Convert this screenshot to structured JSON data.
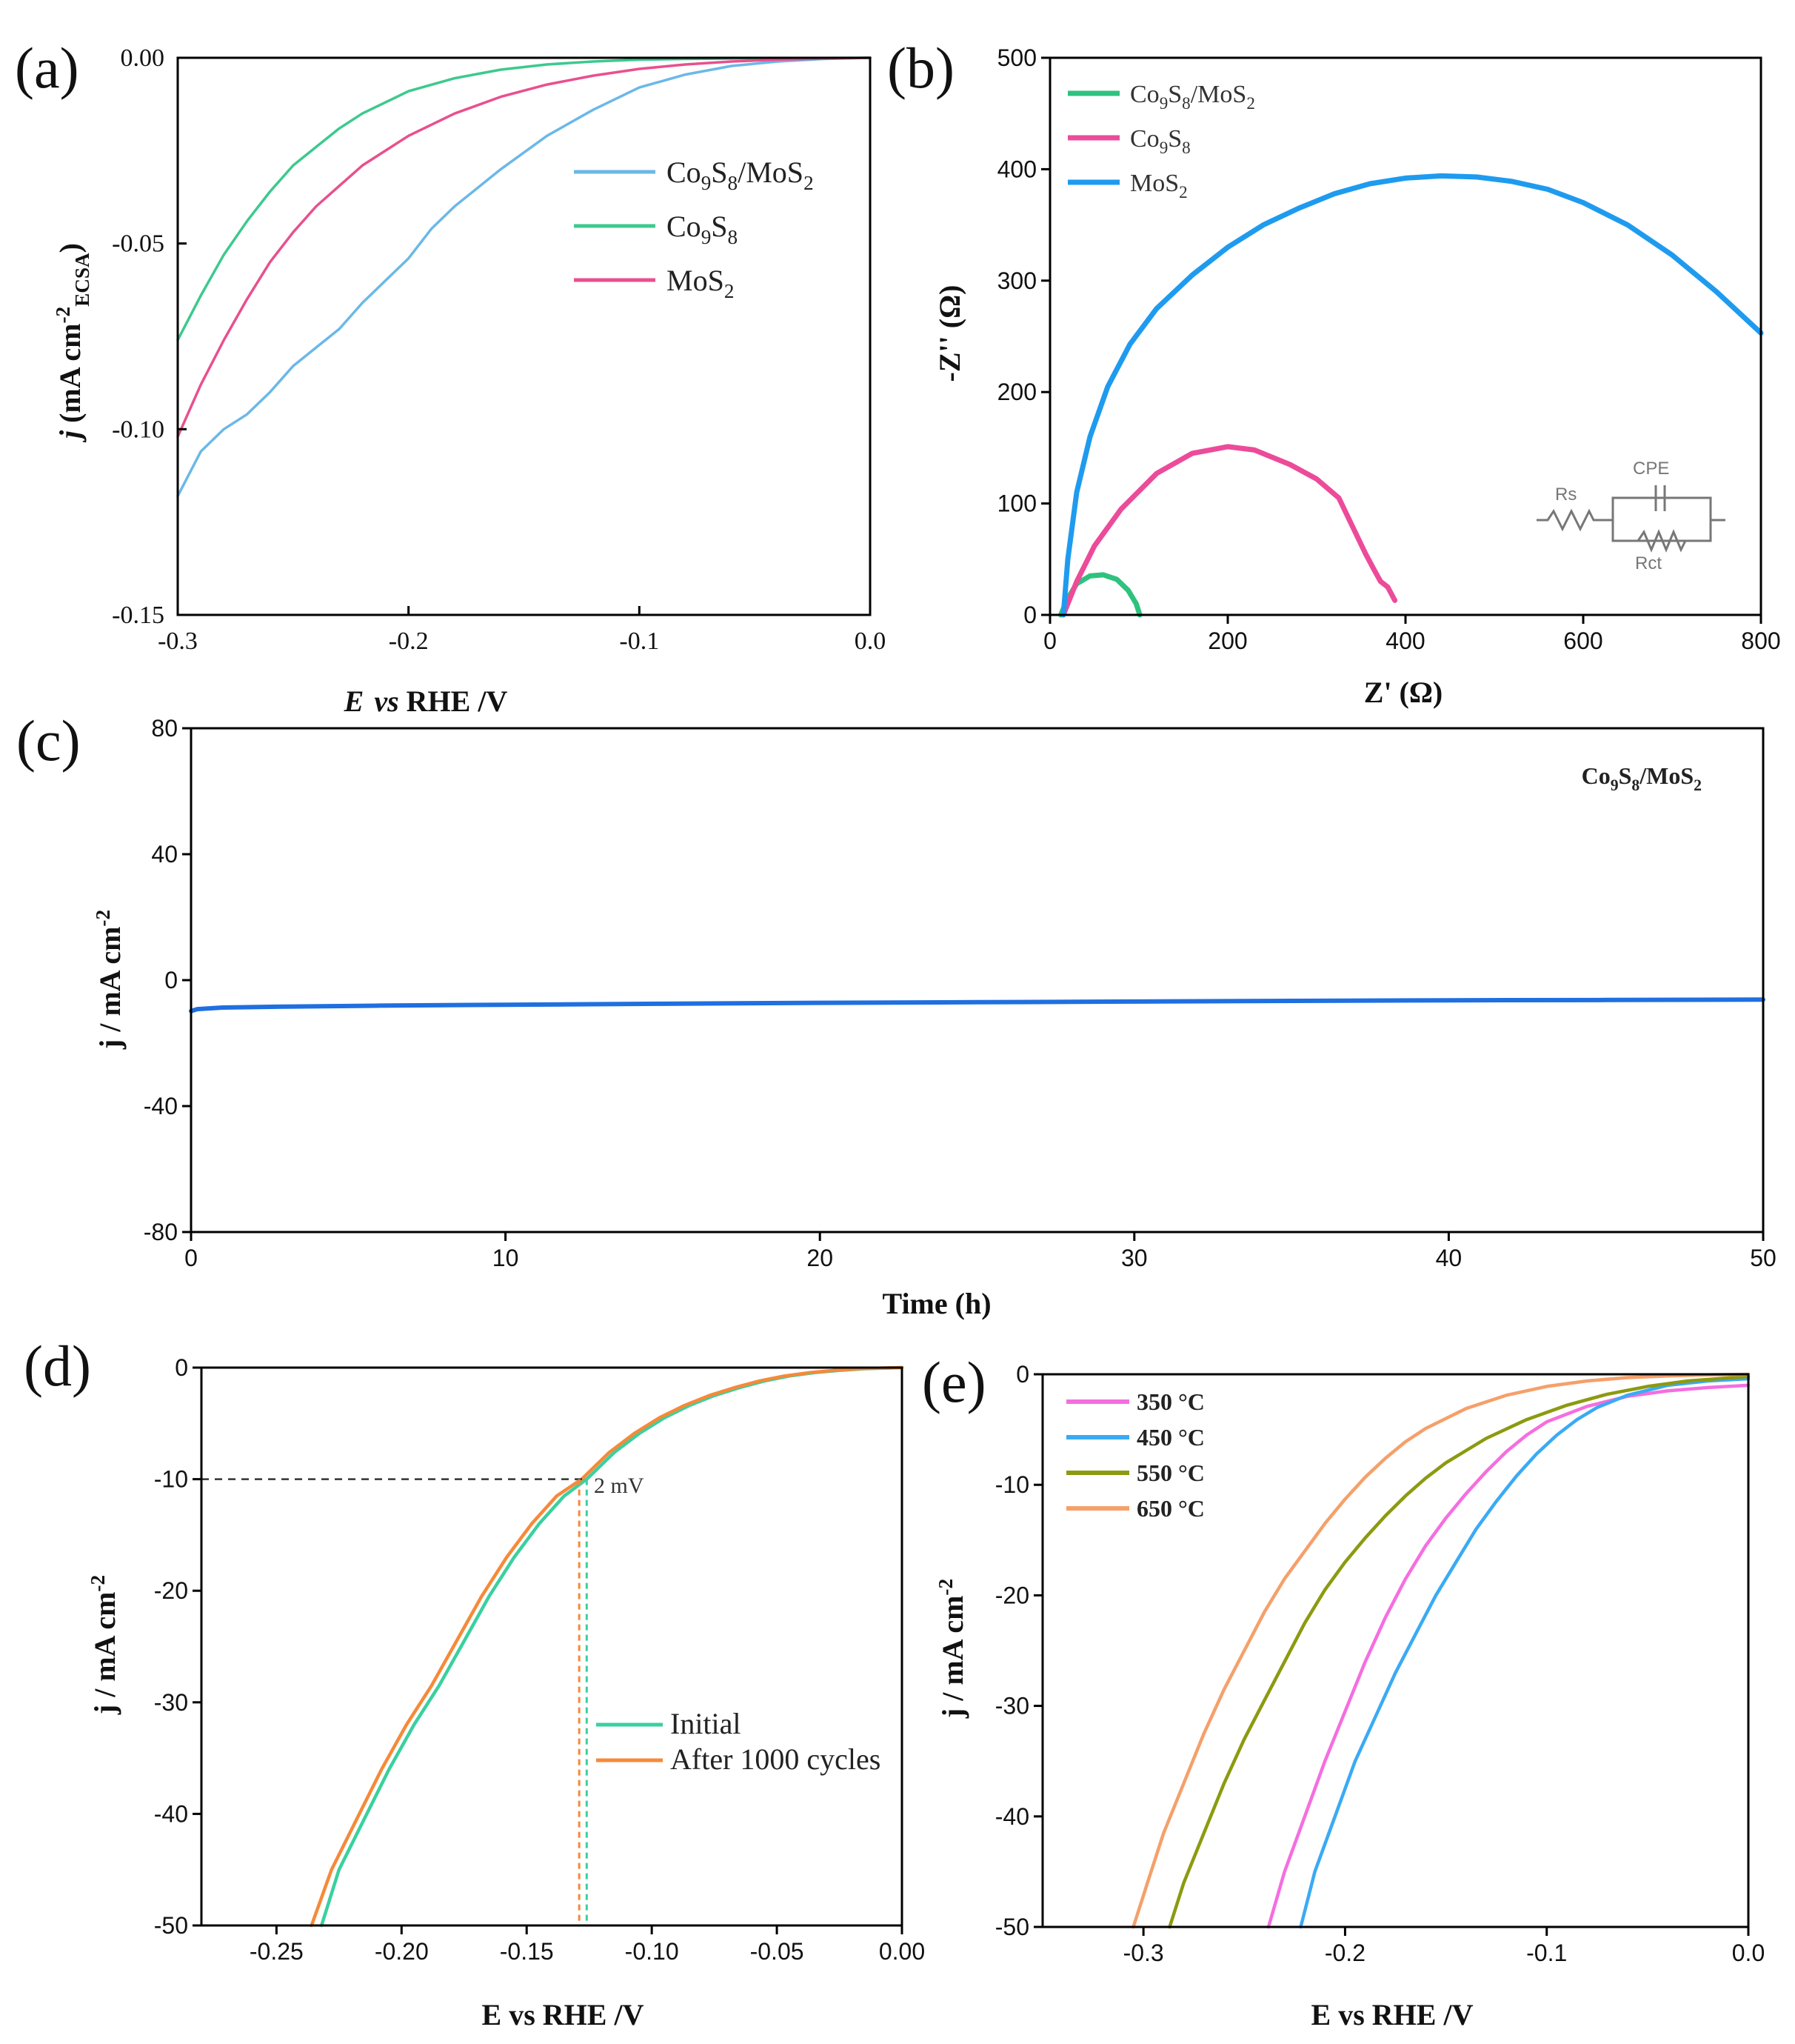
{
  "chart_data": [
    {
      "panel": "(a)",
      "type": "line",
      "xlabel": "E  vs RHE /V",
      "ylabel": "j (mA cm⁻² ECSA)",
      "xlim": [
        -0.3,
        0.0
      ],
      "ylim": [
        -0.15,
        0.0
      ],
      "x_ticks": [
        "-0.3",
        "-0.2",
        "-0.1",
        "0.0"
      ],
      "y_ticks": [
        "0.00",
        "-0.05",
        "-0.10",
        "-0.15"
      ],
      "legend": [
        "Co9S8/MoS2",
        "Co9S8",
        "MoS2"
      ],
      "legend_position": "upper-right",
      "series": [
        {
          "name": "Co9S8/MoS2",
          "color": "#6bb8e8",
          "x": [
            -0.3,
            -0.29,
            -0.28,
            -0.27,
            -0.26,
            -0.25,
            -0.24,
            -0.23,
            -0.22,
            -0.21,
            -0.2,
            -0.19,
            -0.18,
            -0.16,
            -0.14,
            -0.12,
            -0.1,
            -0.08,
            -0.06,
            -0.04,
            -0.02,
            0.0
          ],
          "y": [
            -0.118,
            -0.106,
            -0.1,
            -0.096,
            -0.09,
            -0.083,
            -0.078,
            -0.073,
            -0.066,
            -0.06,
            -0.054,
            -0.046,
            -0.04,
            -0.03,
            -0.021,
            -0.014,
            -0.008,
            -0.0045,
            -0.0022,
            -0.001,
            -0.0003,
            0.0
          ]
        },
        {
          "name": "Co9S8",
          "color": "#3dc98e",
          "x": [
            -0.3,
            -0.29,
            -0.28,
            -0.27,
            -0.26,
            -0.25,
            -0.24,
            -0.23,
            -0.22,
            -0.2,
            -0.18,
            -0.16,
            -0.14,
            -0.12,
            -0.1,
            -0.08,
            -0.06,
            -0.04,
            -0.02,
            0.0
          ],
          "y": [
            -0.076,
            -0.064,
            -0.053,
            -0.044,
            -0.036,
            -0.029,
            -0.024,
            -0.019,
            -0.015,
            -0.009,
            -0.0055,
            -0.0032,
            -0.0018,
            -0.001,
            -0.0005,
            -0.0003,
            -0.0002,
            -0.0001,
            -5e-05,
            0.0
          ]
        },
        {
          "name": "MoS2",
          "color": "#e8508e",
          "x": [
            -0.3,
            -0.29,
            -0.28,
            -0.27,
            -0.26,
            -0.25,
            -0.24,
            -0.22,
            -0.2,
            -0.18,
            -0.16,
            -0.14,
            -0.12,
            -0.1,
            -0.08,
            -0.06,
            -0.04,
            -0.02,
            0.0
          ],
          "y": [
            -0.102,
            -0.088,
            -0.076,
            -0.065,
            -0.055,
            -0.047,
            -0.04,
            -0.029,
            -0.021,
            -0.015,
            -0.0105,
            -0.0072,
            -0.0048,
            -0.003,
            -0.0018,
            -0.001,
            -0.0005,
            -0.0002,
            0.0
          ]
        }
      ]
    },
    {
      "panel": "(b)",
      "type": "line",
      "xlabel": "Z' (Ω)",
      "ylabel": "-Z'' (Ω)",
      "xlim": [
        0,
        800
      ],
      "ylim": [
        0,
        500
      ],
      "x_ticks": [
        "0",
        "200",
        "400",
        "600",
        "800"
      ],
      "y_ticks": [
        "0",
        "100",
        "200",
        "300",
        "400",
        "500"
      ],
      "legend": [
        "Co9S8/MoS2",
        "Co9S8",
        "MoS2"
      ],
      "legend_position": "upper-left",
      "inset_labels": [
        "Rs",
        "CPE",
        "Rct"
      ],
      "series": [
        {
          "name": "Co9S8/MoS2",
          "color": "#2ec27e",
          "x": [
            12,
            20,
            30,
            45,
            60,
            75,
            88,
            97,
            101
          ],
          "y": [
            0,
            15,
            28,
            35,
            36,
            32,
            22,
            10,
            0
          ]
        },
        {
          "name": "Co9S8",
          "color": "#ec4b9a",
          "x": [
            15,
            30,
            50,
            80,
            120,
            160,
            200,
            230,
            270,
            300,
            325,
            340,
            355,
            365,
            372,
            380,
            388
          ],
          "y": [
            0,
            30,
            62,
            95,
            127,
            145,
            151,
            148,
            135,
            122,
            105,
            80,
            55,
            40,
            30,
            25,
            13
          ]
        },
        {
          "name": "MoS2",
          "color": "#1e9bef",
          "x": [
            15,
            20,
            30,
            45,
            65,
            90,
            120,
            160,
            200,
            240,
            280,
            320,
            360,
            400,
            440,
            480,
            520,
            560,
            600,
            650,
            700,
            750,
            800
          ],
          "y": [
            0,
            50,
            110,
            160,
            205,
            243,
            275,
            305,
            330,
            350,
            365,
            378,
            387,
            392,
            394,
            393,
            389,
            382,
            370,
            350,
            323,
            290,
            253
          ]
        }
      ]
    },
    {
      "panel": "(c)",
      "type": "line",
      "title": "Co9S8/MoS2",
      "xlabel": "Time (h)",
      "ylabel": "j / mA cm⁻²",
      "xlim": [
        0,
        50
      ],
      "ylim": [
        -80,
        80
      ],
      "x_ticks": [
        "0",
        "10",
        "20",
        "30",
        "40",
        "50"
      ],
      "y_ticks": [
        "80",
        "40",
        "0",
        "-40",
        "-80"
      ],
      "series": [
        {
          "name": "Co9S8/MoS2",
          "color": "#1f6fe0",
          "x": [
            0,
            0.2,
            1,
            3,
            6,
            10,
            15,
            20,
            25,
            30,
            35,
            40,
            45,
            50
          ],
          "y": [
            -9.8,
            -9.2,
            -8.7,
            -8.4,
            -8.1,
            -7.8,
            -7.5,
            -7.2,
            -7.0,
            -6.8,
            -6.6,
            -6.4,
            -6.3,
            -6.2
          ]
        }
      ]
    },
    {
      "panel": "(d)",
      "type": "line",
      "xlabel": "E vs RHE /V",
      "ylabel": "j / mA cm⁻²",
      "xlim": [
        -0.28,
        0.0
      ],
      "ylim": [
        -50,
        0
      ],
      "x_ticks": [
        "-0.25",
        "-0.20",
        "-0.15",
        "-0.10",
        "-0.05",
        "0.00"
      ],
      "y_ticks": [
        "0",
        "-10",
        "-20",
        "-30",
        "-40",
        "-50"
      ],
      "legend": [
        "Initial",
        "After 1000 cycles"
      ],
      "legend_position": "lower-right",
      "annotation": "2 mV",
      "series": [
        {
          "name": "Initial",
          "color": "#3ad0a0",
          "x": [
            -0.232,
            -0.225,
            -0.215,
            -0.205,
            -0.195,
            -0.185,
            -0.175,
            -0.165,
            -0.155,
            -0.145,
            -0.135,
            -0.126,
            -0.115,
            -0.105,
            -0.095,
            -0.085,
            -0.075,
            -0.065,
            -0.055,
            -0.045,
            -0.035,
            -0.025,
            -0.015,
            -0.005,
            0.0
          ],
          "y": [
            -50,
            -45,
            -40.5,
            -36,
            -32,
            -28.5,
            -24.5,
            -20.5,
            -17,
            -14,
            -11.5,
            -10,
            -7.6,
            -5.9,
            -4.5,
            -3.4,
            -2.5,
            -1.8,
            -1.2,
            -0.75,
            -0.45,
            -0.25,
            -0.1,
            -0.03,
            0
          ]
        },
        {
          "name": "After 1000 cycles",
          "color": "#f58a3a",
          "x": [
            -0.236,
            -0.228,
            -0.218,
            -0.208,
            -0.198,
            -0.188,
            -0.178,
            -0.168,
            -0.158,
            -0.148,
            -0.138,
            -0.128,
            -0.117,
            -0.107,
            -0.097,
            -0.087,
            -0.077,
            -0.067,
            -0.057,
            -0.047,
            -0.037,
            -0.027,
            -0.017,
            -0.007,
            0.0
          ],
          "y": [
            -50,
            -45,
            -40.5,
            -36,
            -32,
            -28.5,
            -24.5,
            -20.5,
            -17,
            -14,
            -11.5,
            -10,
            -7.6,
            -5.9,
            -4.5,
            -3.4,
            -2.5,
            -1.8,
            -1.2,
            -0.75,
            -0.45,
            -0.25,
            -0.1,
            -0.03,
            0
          ]
        }
      ]
    },
    {
      "panel": "(e)",
      "type": "line",
      "xlabel": "E vs RHE /V",
      "ylabel": "j / mA cm⁻²",
      "xlim": [
        -0.35,
        0.0
      ],
      "ylim": [
        -50,
        0
      ],
      "x_ticks": [
        "-0.3",
        "-0.2",
        "-0.1",
        "0.0"
      ],
      "y_ticks": [
        "0",
        "-10",
        "-20",
        "-30",
        "-40",
        "-50"
      ],
      "legend": [
        "350 °C",
        "450 °C",
        "550 °C",
        "650 °C"
      ],
      "legend_position": "upper-left",
      "series": [
        {
          "name": "350 °C",
          "color": "#f56ee0",
          "x": [
            -0.238,
            -0.23,
            -0.22,
            -0.21,
            -0.2,
            -0.19,
            -0.18,
            -0.17,
            -0.16,
            -0.15,
            -0.14,
            -0.13,
            -0.12,
            -0.11,
            -0.1,
            -0.08,
            -0.06,
            -0.04,
            -0.02,
            0.0
          ],
          "y": [
            -50,
            -45,
            -40,
            -35,
            -30.5,
            -26,
            -22,
            -18.5,
            -15.5,
            -13,
            -10.8,
            -8.8,
            -7.0,
            -5.5,
            -4.3,
            -2.9,
            -2.0,
            -1.5,
            -1.2,
            -1.0
          ]
        },
        {
          "name": "450 °C",
          "color": "#3aaaf5",
          "x": [
            -0.222,
            -0.215,
            -0.205,
            -0.195,
            -0.185,
            -0.175,
            -0.165,
            -0.155,
            -0.145,
            -0.135,
            -0.125,
            -0.115,
            -0.105,
            -0.095,
            -0.085,
            -0.075,
            -0.06,
            -0.04,
            -0.02,
            0.0
          ],
          "y": [
            -50,
            -45,
            -40,
            -35,
            -31,
            -27,
            -23.5,
            -20,
            -17,
            -14,
            -11.5,
            -9.2,
            -7.2,
            -5.5,
            -4.1,
            -3.0,
            -1.9,
            -1.0,
            -0.6,
            -0.4
          ]
        },
        {
          "name": "550 °C",
          "color": "#8c9a10",
          "x": [
            -0.287,
            -0.28,
            -0.27,
            -0.26,
            -0.25,
            -0.24,
            -0.23,
            -0.22,
            -0.21,
            -0.2,
            -0.19,
            -0.18,
            -0.17,
            -0.16,
            -0.15,
            -0.13,
            -0.11,
            -0.09,
            -0.07,
            -0.05,
            -0.03,
            0.0
          ],
          "y": [
            -50,
            -46,
            -41.5,
            -37,
            -33,
            -29.5,
            -26,
            -22.5,
            -19.5,
            -17,
            -14.8,
            -12.8,
            -11,
            -9.4,
            -8.0,
            -5.8,
            -4.1,
            -2.8,
            -1.8,
            -1.1,
            -0.6,
            -0.2
          ]
        },
        {
          "name": "650 °C",
          "color": "#f5a06a",
          "x": [
            -0.305,
            -0.298,
            -0.29,
            -0.28,
            -0.27,
            -0.26,
            -0.25,
            -0.24,
            -0.23,
            -0.22,
            -0.21,
            -0.2,
            -0.19,
            -0.18,
            -0.17,
            -0.16,
            -0.14,
            -0.12,
            -0.1,
            -0.08,
            -0.06,
            -0.04,
            -0.02,
            0.0
          ],
          "y": [
            -50,
            -46,
            -41.5,
            -37,
            -32.5,
            -28.5,
            -25,
            -21.5,
            -18.5,
            -16,
            -13.5,
            -11.3,
            -9.3,
            -7.6,
            -6.1,
            -4.9,
            -3.1,
            -1.9,
            -1.1,
            -0.6,
            -0.3,
            -0.15,
            -0.05,
            0.0
          ]
        }
      ]
    }
  ]
}
